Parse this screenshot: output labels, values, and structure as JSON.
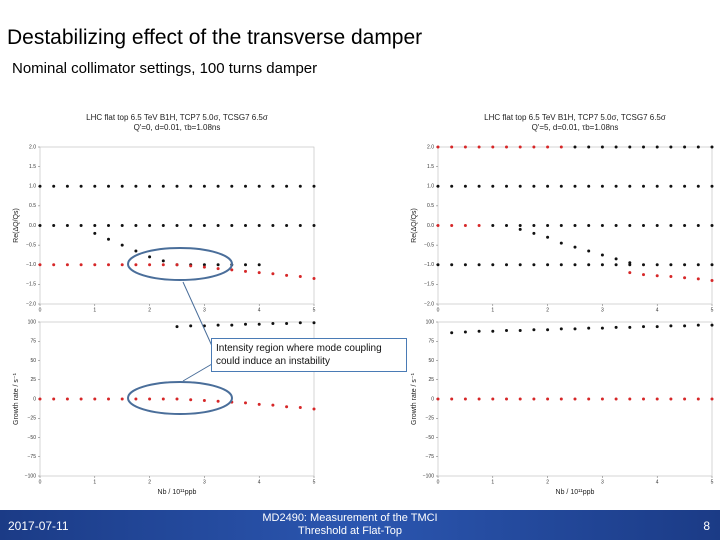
{
  "slide": {
    "title": "Destabilizing effect of the transverse damper",
    "subtitle": "Nominal collimator settings, 100 turns damper",
    "callout": "Intensity region where mode coupling could induce an instability",
    "footer": {
      "date": "2017-07-11",
      "title": "MD2490: Measurement of the TMCI Threshold at Flat-Top",
      "page": "8"
    }
  },
  "chart_data": [
    {
      "type": "scatter",
      "title": [
        "LHC flat top 6.5 TeV B1H, TCP7 5.0σ, TCSG7 6.5σ",
        "Q'=0, d=0.01, τb=1.08ns"
      ],
      "xlabel": "Nb / 10¹¹ppb",
      "panels": [
        {
          "ylabel": "Re(ΔQ/Qs)",
          "ylim": [
            -2,
            2
          ],
          "xlim": [
            0,
            5
          ],
          "yticks": [
            {
              "value": -2,
              "label": "−2.0"
            },
            {
              "value": -1.5,
              "label": "−1.5"
            },
            {
              "value": -1,
              "label": "−1.0"
            },
            {
              "value": -0.5,
              "label": "−0.5"
            },
            {
              "value": 0,
              "label": "0.0"
            },
            {
              "value": 0.5,
              "label": "0.5"
            },
            {
              "value": 1,
              "label": "1.0"
            },
            {
              "value": 1.5,
              "label": "1.5"
            },
            {
              "value": 2,
              "label": "2.0"
            }
          ],
          "xticks": [
            0,
            1,
            2,
            3,
            4,
            5
          ],
          "series": [
            {
              "color": "#111111",
              "x": [
                0,
                0.25,
                0.5,
                0.75,
                1,
                1.25,
                1.5,
                1.75,
                2,
                2.25,
                2.5,
                2.75,
                3,
                3.25,
                3.5,
                3.75,
                4,
                4.25,
                4.5,
                4.75,
                5
              ],
              "values": [
                1,
                1,
                1,
                1,
                1,
                1,
                1,
                1,
                1,
                1,
                1,
                1,
                1,
                1,
                1,
                1,
                1,
                1,
                1,
                1,
                1
              ]
            },
            {
              "color": "#111111",
              "x": [
                0,
                0.25,
                0.5,
                0.75,
                1,
                1.25,
                1.5,
                1.75,
                2,
                2.25,
                2.5,
                2.75,
                3,
                3.25,
                3.5,
                3.75,
                4,
                4.25,
                4.5,
                4.75,
                5
              ],
              "values": [
                0,
                0,
                0,
                0,
                0,
                0,
                0,
                0,
                0,
                0,
                0,
                0,
                0,
                0,
                0,
                0,
                0,
                0,
                0,
                0,
                0
              ]
            },
            {
              "color": "#111111",
              "x": [
                1,
                1.25,
                1.5,
                1.75,
                2,
                2.25,
                2.5,
                2.75,
                3,
                3.25,
                3.5,
                3.75,
                4
              ],
              "values": [
                -0.2,
                -0.35,
                -0.5,
                -0.65,
                -0.8,
                -0.9,
                -1,
                -1,
                -1,
                -1,
                -1,
                -1,
                -1
              ]
            },
            {
              "color": "#d62728",
              "x": [
                0,
                0.25,
                0.5,
                0.75,
                1,
                1.25,
                1.5,
                1.75,
                2,
                2.25,
                2.5,
                2.75,
                3,
                3.25,
                3.5,
                3.75,
                4,
                4.25,
                4.5,
                4.75,
                5
              ],
              "values": [
                -1,
                -1,
                -1,
                -1,
                -1,
                -1,
                -1,
                -1,
                -1,
                -1,
                -1,
                -1.03,
                -1.06,
                -1.1,
                -1.13,
                -1.17,
                -1.2,
                -1.23,
                -1.27,
                -1.3,
                -1.35
              ]
            }
          ]
        },
        {
          "ylabel": "Growth rate / s⁻¹",
          "ylim": [
            -100,
            100
          ],
          "xlim": [
            0,
            5
          ],
          "yticks": [
            {
              "value": -100,
              "label": "−100"
            },
            {
              "value": -75,
              "label": "−75"
            },
            {
              "value": -50,
              "label": "−50"
            },
            {
              "value": -25,
              "label": "−25"
            },
            0,
            25,
            50,
            75,
            100
          ],
          "xticks": [
            0,
            1,
            2,
            3,
            4,
            5
          ],
          "series": [
            {
              "color": "#111111",
              "x": [
                2.5,
                2.75,
                3,
                3.25,
                3.5,
                3.75,
                4,
                4.25,
                4.5,
                4.75,
                5
              ],
              "values": [
                94,
                95,
                95,
                96,
                96,
                97,
                97,
                98,
                98,
                99,
                99
              ]
            },
            {
              "color": "#d62728",
              "x": [
                0,
                0.25,
                0.5,
                0.75,
                1,
                1.25,
                1.5,
                1.75,
                2,
                2.25,
                2.5,
                2.75,
                3,
                3.25,
                3.5,
                3.75,
                4,
                4.25,
                4.5,
                4.75,
                5
              ],
              "values": [
                0,
                0,
                0,
                0,
                0,
                0,
                0,
                0,
                0,
                0,
                0,
                -1,
                -2,
                -3,
                -4,
                -5,
                -7,
                -8,
                -10,
                -11,
                -13
              ]
            }
          ]
        }
      ]
    },
    {
      "type": "scatter",
      "title": [
        "LHC flat top 6.5 TeV B1H, TCP7 5.0σ, TCSG7 6.5σ",
        "Q'=5, d=0.01, τb=1.08ns"
      ],
      "xlabel": "Nb / 10¹¹ppb",
      "panels": [
        {
          "ylabel": "Re(ΔQ/Qs)",
          "ylim": [
            -2,
            2
          ],
          "xlim": [
            0,
            5
          ],
          "yticks": [
            {
              "value": -2,
              "label": "−2.0"
            },
            {
              "value": -1.5,
              "label": "−1.5"
            },
            {
              "value": -1,
              "label": "−1.0"
            },
            {
              "value": -0.5,
              "label": "−0.5"
            },
            {
              "value": 0,
              "label": "0.0"
            },
            {
              "value": 0.5,
              "label": "0.5"
            },
            {
              "value": 1,
              "label": "1.0"
            },
            {
              "value": 1.5,
              "label": "1.5"
            },
            {
              "value": 2,
              "label": "2.0"
            }
          ],
          "xticks": [
            0,
            1,
            2,
            3,
            4,
            5
          ],
          "series": [
            {
              "color": "#d62728",
              "x": [
                0,
                0.25,
                0.5,
                0.75,
                1,
                1.25,
                1.5,
                1.75,
                2,
                2.25
              ],
              "values": [
                2,
                2,
                2,
                2,
                2,
                2,
                2,
                2,
                2,
                2
              ]
            },
            {
              "color": "#111111",
              "x": [
                2.5,
                2.75,
                3,
                3.25,
                3.5,
                3.75,
                4,
                4.25,
                4.5,
                4.75,
                5
              ],
              "values": [
                2,
                2,
                2,
                2,
                2,
                2,
                2,
                2,
                2,
                2,
                2
              ]
            },
            {
              "color": "#111111",
              "x": [
                0,
                0.25,
                0.5,
                0.75,
                1,
                1.25,
                1.5,
                1.75,
                2,
                2.25,
                2.5,
                2.75,
                3,
                3.25,
                3.5,
                3.75,
                4,
                4.25,
                4.5,
                4.75,
                5
              ],
              "values": [
                1,
                1,
                1,
                1,
                1,
                1,
                1,
                1,
                1,
                1,
                1,
                1,
                1,
                1,
                1,
                1,
                1,
                1,
                1,
                1,
                1
              ]
            },
            {
              "color": "#111111",
              "x": [
                1,
                1.25,
                1.5,
                1.75,
                2,
                2.25,
                2.5,
                2.75,
                3,
                3.25,
                3.5,
                3.75,
                4,
                4.25,
                4.5,
                4.75,
                5
              ],
              "values": [
                0,
                0,
                0,
                0,
                0,
                0,
                0,
                0,
                0,
                0,
                0,
                0,
                0,
                0,
                0,
                0,
                0
              ]
            },
            {
              "color": "#d62728",
              "x": [
                0,
                0.25,
                0.5,
                0.75
              ],
              "values": [
                0,
                0,
                0,
                0
              ]
            },
            {
              "color": "#111111",
              "x": [
                1.5,
                1.75,
                2,
                2.25,
                2.5,
                2.75,
                3,
                3.25,
                3.5
              ],
              "values": [
                -0.1,
                -0.2,
                -0.3,
                -0.45,
                -0.55,
                -0.65,
                -0.75,
                -0.85,
                -0.95
              ]
            },
            {
              "color": "#111111",
              "x": [
                0,
                0.25,
                0.5,
                0.75,
                1,
                1.25,
                1.5,
                1.75,
                2,
                2.25,
                2.5,
                2.75,
                3,
                3.25,
                3.5,
                3.75,
                4,
                4.25,
                4.5,
                4.75,
                5
              ],
              "values": [
                -1,
                -1,
                -1,
                -1,
                -1,
                -1,
                -1,
                -1,
                -1,
                -1,
                -1,
                -1,
                -1,
                -1,
                -1,
                -1,
                -1,
                -1,
                -1,
                -1,
                -1
              ]
            },
            {
              "color": "#d62728",
              "x": [
                3.5,
                3.75,
                4,
                4.25,
                4.5,
                4.75,
                5
              ],
              "values": [
                -1.2,
                -1.25,
                -1.28,
                -1.3,
                -1.33,
                -1.36,
                -1.4
              ]
            }
          ]
        },
        {
          "ylabel": "Growth rate / s⁻¹",
          "ylim": [
            -100,
            100
          ],
          "xlim": [
            0,
            5
          ],
          "yticks": [
            {
              "value": -100,
              "label": "−100"
            },
            {
              "value": -75,
              "label": "−75"
            },
            {
              "value": -50,
              "label": "−50"
            },
            {
              "value": -25,
              "label": "−25"
            },
            0,
            25,
            50,
            75,
            100
          ],
          "xticks": [
            0,
            1,
            2,
            3,
            4,
            5
          ],
          "series": [
            {
              "color": "#111111",
              "x": [
                0.25,
                0.5,
                0.75,
                1,
                1.25,
                1.5,
                1.75,
                2,
                2.25,
                2.5,
                2.75,
                3,
                3.25,
                3.5,
                3.75,
                4,
                4.25,
                4.5,
                4.75,
                5
              ],
              "values": [
                86,
                87,
                88,
                88,
                89,
                89,
                90,
                90,
                91,
                91,
                92,
                92,
                93,
                93,
                94,
                94,
                95,
                95,
                96,
                96
              ]
            },
            {
              "color": "#d62728",
              "x": [
                0,
                0.25,
                0.5,
                0.75,
                1,
                1.25,
                1.5,
                1.75,
                2,
                2.25,
                2.5,
                2.75,
                3,
                3.25,
                3.5,
                3.75,
                4,
                4.25,
                4.5,
                4.75,
                5
              ],
              "values": [
                0,
                0,
                0,
                0,
                0,
                0,
                0,
                0,
                0,
                0,
                0,
                0,
                0,
                0,
                0,
                0,
                0,
                0,
                0,
                0,
                0
              ]
            }
          ]
        }
      ]
    }
  ]
}
